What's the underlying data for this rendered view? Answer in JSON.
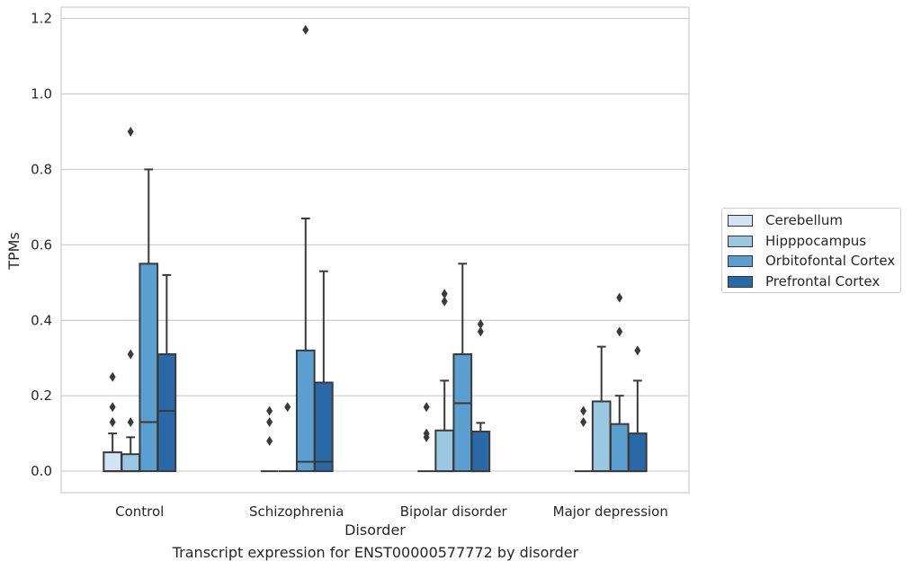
{
  "caption": "Transcript expression for ENST00000577772 by disorder",
  "chart_data": {
    "type": "boxplot",
    "xlabel": "Disorder",
    "ylabel": "TPMs",
    "ylim": [
      -0.057,
      1.23
    ],
    "yticks": [
      "0.0",
      "0.2",
      "0.4",
      "0.6",
      "0.8",
      "1.0",
      "1.2"
    ],
    "ytick_values": [
      0.0,
      0.2,
      0.4,
      0.6,
      0.8,
      1.0,
      1.2
    ],
    "grid": true,
    "legend_position": "right",
    "categories": [
      "Control",
      "Schizophrenia",
      "Bipolar disorder",
      "Major depression"
    ],
    "series": [
      {
        "name": "Cerebellum",
        "color": "#d2e3f3",
        "boxes": [
          {
            "q1": 0.0,
            "median": 0.0,
            "q3": 0.05,
            "whisker_low": 0.0,
            "whisker_high": 0.1,
            "outliers": [
              0.13,
              0.17,
              0.25
            ]
          },
          {
            "q1": 0.0,
            "median": 0.0,
            "q3": 0.0,
            "whisker_low": 0.0,
            "whisker_high": 0.0,
            "outliers": [
              0.08,
              0.13,
              0.16
            ]
          },
          {
            "q1": 0.0,
            "median": 0.0,
            "q3": 0.0,
            "whisker_low": 0.0,
            "whisker_high": 0.0,
            "outliers": [
              0.09,
              0.1,
              0.17
            ]
          },
          {
            "q1": 0.0,
            "median": 0.0,
            "q3": 0.0,
            "whisker_low": 0.0,
            "whisker_high": 0.0,
            "outliers": [
              0.13,
              0.16
            ]
          }
        ]
      },
      {
        "name": "Hipppocampus",
        "color": "#9ac8e0",
        "boxes": [
          {
            "q1": 0.0,
            "median": 0.0,
            "q3": 0.045,
            "whisker_low": 0.0,
            "whisker_high": 0.09,
            "outliers": [
              0.13,
              0.31,
              0.9
            ]
          },
          {
            "q1": 0.0,
            "median": 0.0,
            "q3": 0.0,
            "whisker_low": 0.0,
            "whisker_high": 0.0,
            "outliers": [
              0.17
            ]
          },
          {
            "q1": 0.0,
            "median": 0.0,
            "q3": 0.108,
            "whisker_low": 0.0,
            "whisker_high": 0.24,
            "outliers": [
              0.45,
              0.47
            ]
          },
          {
            "q1": 0.0,
            "median": 0.0,
            "q3": 0.185,
            "whisker_low": 0.0,
            "whisker_high": 0.33,
            "outliers": []
          }
        ]
      },
      {
        "name": "Orbitofontal Cortex",
        "color": "#5a9fcf",
        "boxes": [
          {
            "q1": 0.0,
            "median": 0.13,
            "q3": 0.55,
            "whisker_low": 0.0,
            "whisker_high": 0.8,
            "outliers": []
          },
          {
            "q1": 0.0,
            "median": 0.025,
            "q3": 0.32,
            "whisker_low": 0.0,
            "whisker_high": 0.67,
            "outliers": [
              1.17
            ]
          },
          {
            "q1": 0.0,
            "median": 0.18,
            "q3": 0.31,
            "whisker_low": 0.0,
            "whisker_high": 0.55,
            "outliers": []
          },
          {
            "q1": 0.0,
            "median": 0.0,
            "q3": 0.125,
            "whisker_low": 0.0,
            "whisker_high": 0.2,
            "outliers": [
              0.37,
              0.46
            ]
          }
        ]
      },
      {
        "name": "Prefrontal Cortex",
        "color": "#2a69a8",
        "boxes": [
          {
            "q1": 0.0,
            "median": 0.16,
            "q3": 0.31,
            "whisker_low": 0.0,
            "whisker_high": 0.52,
            "outliers": []
          },
          {
            "q1": 0.0,
            "median": 0.025,
            "q3": 0.235,
            "whisker_low": 0.0,
            "whisker_high": 0.53,
            "outliers": []
          },
          {
            "q1": 0.0,
            "median": 0.0,
            "q3": 0.105,
            "whisker_low": 0.0,
            "whisker_high": 0.128,
            "outliers": [
              0.37,
              0.39
            ]
          },
          {
            "q1": 0.0,
            "median": 0.0,
            "q3": 0.1,
            "whisker_low": 0.0,
            "whisker_high": 0.24,
            "outliers": [
              0.32
            ]
          }
        ]
      }
    ]
  }
}
